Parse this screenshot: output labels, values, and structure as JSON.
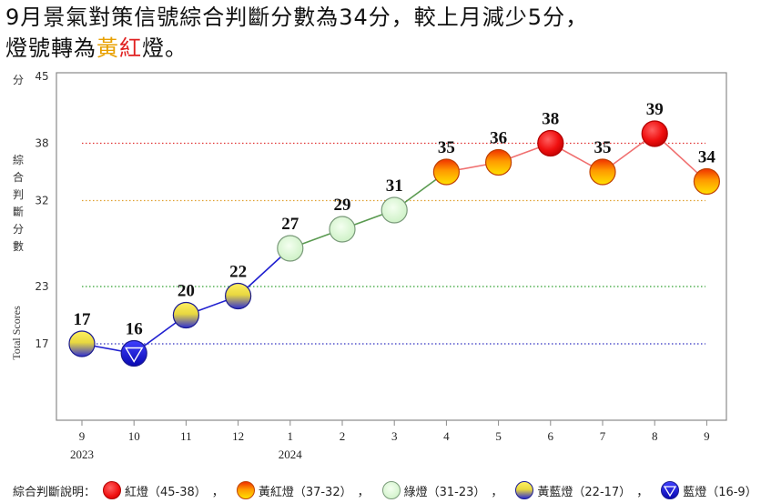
{
  "title": {
    "line1": "9月景氣對策信號綜合判斷分數為34分，較上月減少5分，",
    "line2_pre": "燈號轉為",
    "line2_hl1": "黃",
    "line2_hl2": "紅",
    "line2_post": "燈。"
  },
  "colors": {
    "red": "#e81010",
    "yellow_red": "#f07010",
    "green": "#d8f5d0",
    "yellow_blue": "#e8d840",
    "blue": "#1a1ad0",
    "line_blue": "#2020d0",
    "line_green": "#5a9a50",
    "line_red": "#f07070",
    "ref_red": "#e03030",
    "ref_orange": "#e0a030",
    "ref_green": "#30a030",
    "ref_blue": "#3030c0"
  },
  "chart_data": {
    "type": "line",
    "ylabel_unit": "分",
    "ylabel_zh": "綜合判斷分數",
    "ylabel_en": "Total Scores",
    "ylim": [
      9,
      45
    ],
    "yticks": [
      17,
      23,
      32,
      38,
      45
    ],
    "reference_lines": [
      38,
      32,
      23,
      17
    ],
    "categories": [
      "9",
      "10",
      "11",
      "12",
      "1",
      "2",
      "3",
      "4",
      "5",
      "6",
      "7",
      "8",
      "9"
    ],
    "year_labels": [
      {
        "index": 0,
        "text": "2023"
      },
      {
        "index": 4,
        "text": "2024"
      }
    ],
    "values": [
      17,
      16,
      20,
      22,
      27,
      29,
      31,
      35,
      36,
      38,
      35,
      39,
      34
    ],
    "signals": [
      "yellow_blue",
      "blue",
      "yellow_blue",
      "yellow_blue",
      "green",
      "green",
      "green",
      "yellow_red",
      "yellow_red",
      "red",
      "yellow_red",
      "red",
      "yellow_red"
    ],
    "grid": false
  },
  "legend": {
    "title": "綜合判斷說明：",
    "items": [
      {
        "key": "red",
        "label": "紅燈（45-38）"
      },
      {
        "key": "yellow_red",
        "label": "黃紅燈（37-32）"
      },
      {
        "key": "green",
        "label": "綠燈（31-23）"
      },
      {
        "key": "yellow_blue",
        "label": "黃藍燈（22-17）"
      },
      {
        "key": "blue",
        "label": "藍燈（16-9）"
      }
    ],
    "separator": "，"
  }
}
